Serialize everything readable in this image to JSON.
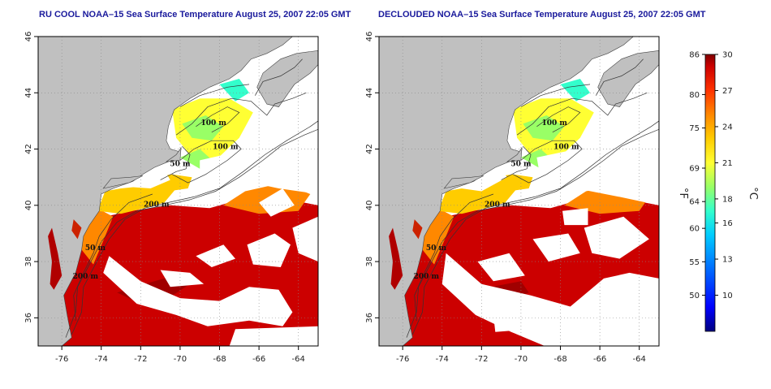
{
  "panels": [
    {
      "id": "rucool",
      "title": "RU COOL NOAA–15 Sea Surface Temperature August 25, 2007 22:05 GMT",
      "mode": "cloudy"
    },
    {
      "id": "declouded",
      "title": "DECLOUDED NOAA–15 Sea Surface Temperature August 25, 2007 22:05 GMT",
      "mode": "declouded"
    }
  ],
  "axes": {
    "lon_ticks": [
      "-76",
      "-74",
      "-72",
      "-70",
      "-68",
      "-66",
      "-64"
    ],
    "lon_values": [
      -76,
      -74,
      -72,
      -70,
      -68,
      -66,
      -64
    ],
    "lat_ticks": [
      "36",
      "38",
      "40",
      "42",
      "44",
      "46"
    ],
    "lat_values": [
      36,
      38,
      40,
      42,
      44,
      46
    ],
    "lon_range": [
      -77.2,
      -63.0
    ],
    "lat_range": [
      35.0,
      46.0
    ],
    "grid": "dotted"
  },
  "contour_labels": [
    {
      "text": "100 m",
      "lon": -68.3,
      "lat": 42.85
    },
    {
      "text": "100 m",
      "lon": -67.7,
      "lat": 42.0
    },
    {
      "text": "50 m",
      "lon": -70.0,
      "lat": 41.4
    },
    {
      "text": "200 m",
      "lon": -71.2,
      "lat": 39.95
    },
    {
      "text": "50 m",
      "lon": -74.3,
      "lat": 38.4
    },
    {
      "text": "200 m",
      "lon": -74.8,
      "lat": 37.4
    }
  ],
  "colorbar": {
    "fahrenheit_labels": [
      "86",
      "80",
      "75",
      "69",
      "64",
      "60",
      "55",
      "50"
    ],
    "fahrenheit_values": [
      86,
      80,
      75,
      69,
      64,
      60,
      55,
      50
    ],
    "celsius_labels": [
      "30",
      "27",
      "24",
      "21",
      "18",
      "16",
      "13",
      "10"
    ],
    "celsius_values": [
      30,
      27,
      24,
      21,
      18,
      16,
      13,
      10
    ],
    "range_c": [
      7.0,
      30.0
    ],
    "unit_f": "°F",
    "unit_c": "°C"
  },
  "colors": {
    "land": "#c0c0c0",
    "cloud": "#ffffff",
    "title": "#1a1a9c"
  }
}
